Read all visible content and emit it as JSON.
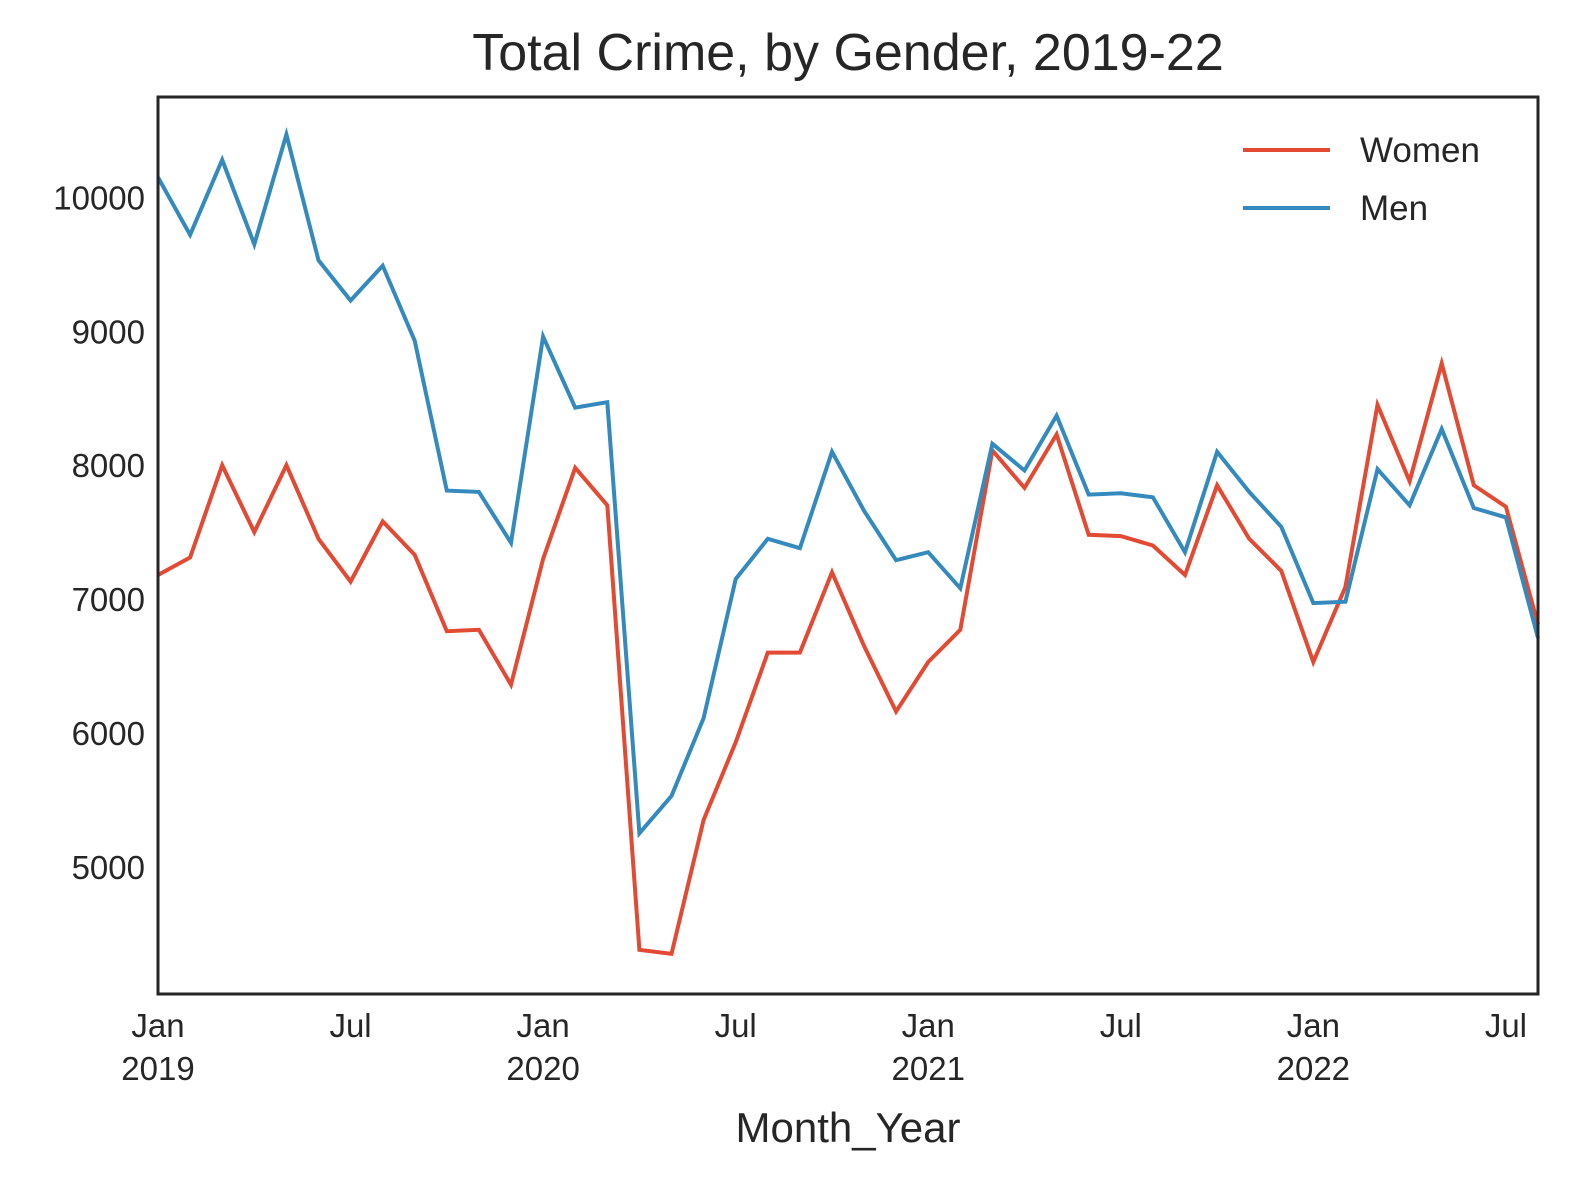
{
  "chart_data": {
    "type": "line",
    "title": "Total Crime, by Gender, 2019-22",
    "xlabel": "Month_Year",
    "ylabel": "",
    "x": [
      "2019-01",
      "2019-02",
      "2019-03",
      "2019-04",
      "2019-05",
      "2019-06",
      "2019-07",
      "2019-08",
      "2019-09",
      "2019-10",
      "2019-11",
      "2019-12",
      "2020-01",
      "2020-02",
      "2020-03",
      "2020-04",
      "2020-05",
      "2020-06",
      "2020-07",
      "2020-08",
      "2020-09",
      "2020-10",
      "2020-11",
      "2020-12",
      "2021-01",
      "2021-02",
      "2021-03",
      "2021-04",
      "2021-05",
      "2021-06",
      "2021-07",
      "2021-08",
      "2021-09",
      "2021-10",
      "2021-11",
      "2021-12",
      "2022-01",
      "2022-02",
      "2022-03",
      "2022-04",
      "2022-05",
      "2022-06",
      "2022-07",
      "2022-08"
    ],
    "xlim": [
      "2019-01",
      "2022-08"
    ],
    "ylim": [
      4050,
      10750
    ],
    "yticks": [
      5000,
      6000,
      7000,
      8000,
      9000,
      10000
    ],
    "xticks": [
      {
        "x": "2019-01",
        "label": "Jan",
        "sublabel": "2019"
      },
      {
        "x": "2019-07",
        "label": "Jul",
        "sublabel": ""
      },
      {
        "x": "2020-01",
        "label": "Jan",
        "sublabel": "2020"
      },
      {
        "x": "2020-07",
        "label": "Jul",
        "sublabel": ""
      },
      {
        "x": "2021-01",
        "label": "Jan",
        "sublabel": "2021"
      },
      {
        "x": "2021-07",
        "label": "Jul",
        "sublabel": ""
      },
      {
        "x": "2022-01",
        "label": "Jan",
        "sublabel": "2022"
      },
      {
        "x": "2022-07",
        "label": "Jul",
        "sublabel": ""
      }
    ],
    "grid": false,
    "legend_position": "top-right",
    "series": [
      {
        "name": "Women",
        "color": "#E24A33",
        "values": [
          7180,
          7310,
          8000,
          7500,
          8000,
          7450,
          7130,
          7580,
          7330,
          6760,
          6770,
          6360,
          7300,
          7980,
          7700,
          4380,
          4350,
          5350,
          5930,
          6600,
          6600,
          7200,
          6650,
          6160,
          6530,
          6770,
          8110,
          7830,
          8230,
          7480,
          7470,
          7400,
          7180,
          7850,
          7450,
          7210,
          6530,
          7090,
          8450,
          7880,
          8760,
          7850,
          7690,
          6810
        ]
      },
      {
        "name": "Men",
        "color": "#348ABD",
        "values": [
          10150,
          9720,
          10280,
          9650,
          10470,
          9530,
          9230,
          9490,
          8930,
          7810,
          7800,
          7420,
          8960,
          8430,
          8470,
          5250,
          5530,
          6110,
          7150,
          7450,
          7380,
          8100,
          7660,
          7290,
          7350,
          7080,
          8160,
          7960,
          8370,
          7780,
          7790,
          7760,
          7350,
          8100,
          7800,
          7540,
          6970,
          6980,
          7970,
          7700,
          8270,
          7680,
          7610,
          6710
        ]
      }
    ]
  }
}
